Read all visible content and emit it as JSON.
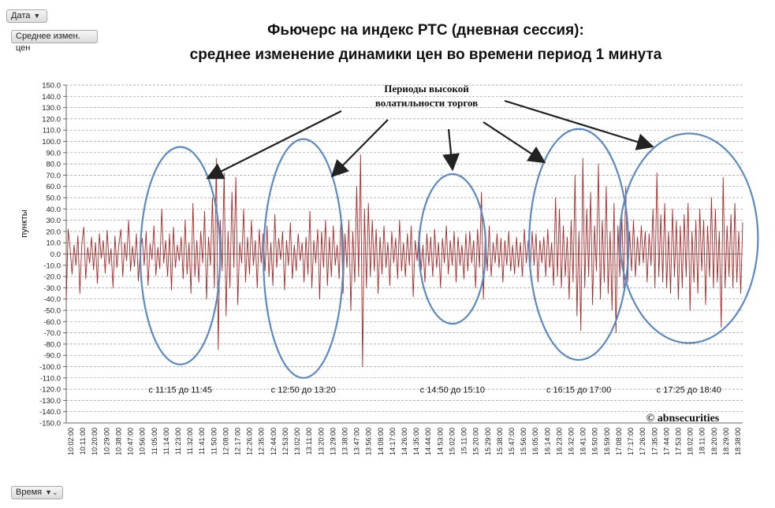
{
  "ui": {
    "field_date": "Дата",
    "field_value": "Среднее измен. цен",
    "field_time": "Время"
  },
  "chart_data": {
    "type": "line",
    "title_line1": "Фьючерс на индекс РТС (дневная сессия):",
    "title_line2": "среднее изменение динамики цен во времени период 1 минута",
    "ylabel": "пункты",
    "ylim": [
      -150,
      150
    ],
    "y_step": 10,
    "color": "#a52a2a",
    "ellipse_color": "#5b8ac0",
    "annotation": [
      "Периоды высокой",
      "волатильности торгов"
    ],
    "copyright": "© abnsecurities",
    "periods": [
      {
        "label": "с 11:15 до 11:45",
        "start": "11:15",
        "end": "11:45",
        "y_range": [
          -98,
          95
        ]
      },
      {
        "label": "с 12:50 до 13:20",
        "start": "12:50",
        "end": "13:20",
        "y_range": [
          -110,
          102
        ]
      },
      {
        "label": "с 14:50 до 15:10",
        "start": "14:50",
        "end": "15:10",
        "y_range": [
          -62,
          71
        ]
      },
      {
        "label": "с 16:15 до 17:00",
        "start": "16:15",
        "end": "17:00",
        "y_range": [
          -94,
          111
        ]
      },
      {
        "label": "с 17:25 до 18:40",
        "start": "17:25",
        "end": "18:40",
        "y_range": [
          -79,
          107
        ]
      }
    ],
    "time_start": "10:02",
    "time_end": "18:44",
    "x_tick_labels": [
      "10:02:00",
      "10:11:00",
      "10:20:00",
      "10:29:00",
      "10:38:00",
      "10:47:00",
      "10:56:00",
      "11:05:00",
      "11:14:00",
      "11:23:00",
      "11:32:00",
      "11:41:00",
      "11:50:00",
      "12:08:00",
      "12:17:00",
      "12:26:00",
      "12:35:00",
      "12:44:00",
      "12:53:00",
      "13:02:00",
      "13:11:00",
      "13:20:00",
      "13:29:00",
      "13:38:00",
      "13:47:00",
      "13:56:00",
      "14:08:00",
      "14:17:00",
      "14:26:00",
      "14:35:00",
      "14:44:00",
      "14:53:00",
      "15:02:00",
      "15:11:00",
      "15:20:00",
      "15:29:00",
      "15:38:00",
      "15:47:00",
      "15:56:00",
      "16:05:00",
      "16:14:00",
      "16:23:00",
      "16:32:00",
      "16:41:00",
      "16:50:00",
      "16:59:00",
      "17:08:00",
      "17:17:00",
      "17:26:00",
      "17:35:00",
      "17:44:00",
      "17:53:00",
      "18:02:00",
      "18:11:00",
      "18:20:00",
      "18:29:00",
      "18:38:00"
    ],
    "series_points": [
      [
        0,
        -42
      ],
      [
        1,
        22
      ],
      [
        2,
        5
      ],
      [
        3,
        -18
      ],
      [
        4,
        8
      ],
      [
        5,
        -10
      ],
      [
        6,
        16
      ],
      [
        7,
        -35
      ],
      [
        8,
        9
      ],
      [
        9,
        24
      ],
      [
        10,
        -22
      ],
      [
        11,
        6
      ],
      [
        12,
        -8
      ],
      [
        13,
        15
      ],
      [
        14,
        -14
      ],
      [
        15,
        10
      ],
      [
        16,
        -26
      ],
      [
        17,
        18
      ],
      [
        18,
        -4
      ],
      [
        19,
        12
      ],
      [
        20,
        -17
      ],
      [
        21,
        21
      ],
      [
        22,
        -9
      ],
      [
        23,
        5
      ],
      [
        24,
        -30
      ],
      [
        25,
        16
      ],
      [
        26,
        -12
      ],
      [
        27,
        8
      ],
      [
        28,
        22
      ],
      [
        29,
        -20
      ],
      [
        30,
        10
      ],
      [
        31,
        -6
      ],
      [
        32,
        30
      ],
      [
        33,
        -15
      ],
      [
        34,
        7
      ],
      [
        35,
        -11
      ],
      [
        36,
        18
      ],
      [
        37,
        -24
      ],
      [
        38,
        4
      ],
      [
        39,
        14
      ],
      [
        40,
        -10
      ],
      [
        41,
        20
      ],
      [
        42,
        -28
      ],
      [
        43,
        9
      ],
      [
        44,
        -5
      ],
      [
        45,
        25
      ],
      [
        46,
        -19
      ],
      [
        47,
        6
      ],
      [
        48,
        -13
      ],
      [
        49,
        40
      ],
      [
        50,
        -8
      ],
      [
        51,
        12
      ],
      [
        52,
        -20
      ],
      [
        53,
        18
      ],
      [
        54,
        -32
      ],
      [
        55,
        24
      ],
      [
        56,
        -12
      ],
      [
        57,
        8
      ],
      [
        58,
        -6
      ],
      [
        59,
        15
      ],
      [
        60,
        -22
      ],
      [
        61,
        30
      ],
      [
        62,
        -18
      ],
      [
        63,
        10
      ],
      [
        64,
        -35
      ],
      [
        65,
        45
      ],
      [
        66,
        -20
      ],
      [
        67,
        12
      ],
      [
        68,
        -25
      ],
      [
        69,
        20
      ],
      [
        70,
        -8
      ],
      [
        71,
        38
      ],
      [
        72,
        -40
      ],
      [
        73,
        15
      ],
      [
        74,
        -10
      ],
      [
        75,
        50
      ],
      [
        76,
        -30
      ],
      [
        77,
        85
      ],
      [
        78,
        -85
      ],
      [
        79,
        30
      ],
      [
        80,
        -15
      ],
      [
        81,
        72
      ],
      [
        82,
        -55
      ],
      [
        83,
        20
      ],
      [
        84,
        -30
      ],
      [
        85,
        55
      ],
      [
        86,
        -12
      ],
      [
        87,
        68
      ],
      [
        88,
        -45
      ],
      [
        89,
        10
      ],
      [
        90,
        -8
      ],
      [
        91,
        40
      ],
      [
        92,
        -25
      ],
      [
        93,
        15
      ],
      [
        94,
        -18
      ],
      [
        95,
        30
      ],
      [
        96,
        -10
      ],
      [
        97,
        12
      ],
      [
        98,
        -30
      ],
      [
        99,
        22
      ],
      [
        100,
        -8
      ],
      [
        101,
        18
      ],
      [
        102,
        -15
      ],
      [
        103,
        25
      ],
      [
        104,
        -20
      ],
      [
        105,
        10
      ],
      [
        106,
        -28
      ],
      [
        107,
        35
      ],
      [
        108,
        -12
      ],
      [
        109,
        14
      ],
      [
        110,
        -5
      ],
      [
        111,
        20
      ],
      [
        112,
        -32
      ],
      [
        113,
        12
      ],
      [
        114,
        -10
      ],
      [
        115,
        28
      ],
      [
        116,
        -22
      ],
      [
        117,
        8
      ],
      [
        118,
        -15
      ],
      [
        119,
        18
      ],
      [
        120,
        -6
      ],
      [
        121,
        10
      ],
      [
        122,
        -25
      ],
      [
        123,
        15
      ],
      [
        124,
        -18
      ],
      [
        125,
        38
      ],
      [
        126,
        -30
      ],
      [
        127,
        12
      ],
      [
        128,
        -8
      ],
      [
        129,
        22
      ],
      [
        130,
        -40
      ],
      [
        131,
        20
      ],
      [
        132,
        -12
      ],
      [
        133,
        30
      ],
      [
        134,
        -28
      ],
      [
        135,
        15
      ],
      [
        136,
        -20
      ],
      [
        137,
        25
      ],
      [
        138,
        -10
      ],
      [
        139,
        8
      ],
      [
        140,
        -22
      ],
      [
        141,
        35
      ],
      [
        142,
        -35
      ],
      [
        143,
        18
      ],
      [
        144,
        -12
      ],
      [
        145,
        30
      ],
      [
        146,
        -50
      ],
      [
        147,
        20
      ],
      [
        148,
        -25
      ],
      [
        149,
        60
      ],
      [
        150,
        -20
      ],
      [
        151,
        88
      ],
      [
        152,
        -100
      ],
      [
        153,
        40
      ],
      [
        154,
        -30
      ],
      [
        155,
        45
      ],
      [
        156,
        -20
      ],
      [
        157,
        30
      ],
      [
        158,
        -15
      ],
      [
        159,
        22
      ],
      [
        160,
        -35
      ],
      [
        161,
        15
      ],
      [
        162,
        -18
      ],
      [
        163,
        25
      ],
      [
        164,
        -12
      ],
      [
        165,
        10
      ],
      [
        166,
        -28
      ],
      [
        167,
        20
      ],
      [
        168,
        -8
      ],
      [
        169,
        14
      ],
      [
        170,
        -22
      ],
      [
        171,
        30
      ],
      [
        172,
        -15
      ],
      [
        173,
        10
      ],
      [
        174,
        -20
      ],
      [
        175,
        18
      ],
      [
        176,
        -10
      ],
      [
        177,
        25
      ],
      [
        178,
        -38
      ],
      [
        179,
        12
      ],
      [
        180,
        -6
      ],
      [
        181,
        20
      ],
      [
        182,
        -15
      ],
      [
        183,
        8
      ],
      [
        184,
        -25
      ],
      [
        185,
        18
      ],
      [
        186,
        -10
      ],
      [
        187,
        15
      ],
      [
        188,
        -20
      ],
      [
        189,
        22
      ],
      [
        190,
        -12
      ],
      [
        191,
        10
      ],
      [
        192,
        -30
      ],
      [
        193,
        14
      ],
      [
        194,
        -8
      ],
      [
        195,
        25
      ],
      [
        196,
        -18
      ],
      [
        197,
        12
      ],
      [
        198,
        -10
      ],
      [
        199,
        20
      ],
      [
        200,
        -25
      ],
      [
        201,
        15
      ],
      [
        202,
        -10
      ],
      [
        203,
        8
      ],
      [
        204,
        -22
      ],
      [
        205,
        18
      ],
      [
        206,
        -15
      ],
      [
        207,
        20
      ],
      [
        208,
        -8
      ],
      [
        209,
        12
      ],
      [
        210,
        -30
      ],
      [
        211,
        22
      ],
      [
        212,
        -12
      ],
      [
        213,
        55
      ],
      [
        214,
        -40
      ],
      [
        215,
        20
      ],
      [
        216,
        -15
      ],
      [
        217,
        25
      ],
      [
        218,
        -20
      ],
      [
        219,
        10
      ],
      [
        220,
        -8
      ],
      [
        221,
        18
      ],
      [
        222,
        -12
      ],
      [
        223,
        14
      ],
      [
        224,
        -25
      ],
      [
        225,
        12
      ],
      [
        226,
        -10
      ],
      [
        227,
        20
      ],
      [
        228,
        -15
      ],
      [
        229,
        8
      ],
      [
        230,
        -18
      ],
      [
        231,
        15
      ],
      [
        232,
        -12
      ],
      [
        233,
        10
      ],
      [
        234,
        -20
      ],
      [
        235,
        22
      ],
      [
        236,
        -8
      ],
      [
        237,
        12
      ],
      [
        238,
        -15
      ],
      [
        239,
        20
      ],
      [
        240,
        -10
      ],
      [
        241,
        18
      ],
      [
        242,
        -25
      ],
      [
        243,
        12
      ],
      [
        244,
        -8
      ],
      [
        245,
        15
      ],
      [
        246,
        -20
      ],
      [
        247,
        22
      ],
      [
        248,
        -12
      ],
      [
        249,
        10
      ],
      [
        250,
        -28
      ],
      [
        251,
        50
      ],
      [
        252,
        -20
      ],
      [
        253,
        40
      ],
      [
        254,
        -30
      ],
      [
        255,
        25
      ],
      [
        256,
        -20
      ],
      [
        257,
        15
      ],
      [
        258,
        -40
      ],
      [
        259,
        30
      ],
      [
        260,
        -25
      ],
      [
        261,
        70
      ],
      [
        262,
        -55
      ],
      [
        263,
        20
      ],
      [
        264,
        -68
      ],
      [
        265,
        85
      ],
      [
        266,
        -30
      ],
      [
        267,
        40
      ],
      [
        268,
        -20
      ],
      [
        269,
        55
      ],
      [
        270,
        -45
      ],
      [
        271,
        25
      ],
      [
        272,
        -15
      ],
      [
        273,
        80
      ],
      [
        274,
        -40
      ],
      [
        275,
        30
      ],
      [
        276,
        -25
      ],
      [
        277,
        60
      ],
      [
        278,
        -35
      ],
      [
        279,
        20
      ],
      [
        280,
        -50
      ],
      [
        281,
        45
      ],
      [
        282,
        -70
      ],
      [
        283,
        25
      ],
      [
        284,
        -20
      ],
      [
        285,
        35
      ],
      [
        286,
        -30
      ],
      [
        287,
        60
      ],
      [
        288,
        -25
      ],
      [
        289,
        20
      ],
      [
        290,
        -15
      ],
      [
        291,
        30
      ],
      [
        292,
        -20
      ],
      [
        293,
        15
      ],
      [
        294,
        -10
      ],
      [
        295,
        25
      ],
      [
        296,
        -8
      ],
      [
        297,
        20
      ],
      [
        298,
        -25
      ],
      [
        299,
        18
      ],
      [
        300,
        -10
      ],
      [
        301,
        40
      ],
      [
        302,
        -30
      ],
      [
        303,
        72
      ],
      [
        304,
        -20
      ],
      [
        305,
        35
      ],
      [
        306,
        -25
      ],
      [
        307,
        45
      ],
      [
        308,
        -30
      ],
      [
        309,
        20
      ],
      [
        310,
        -35
      ],
      [
        311,
        40
      ],
      [
        312,
        -20
      ],
      [
        313,
        30
      ],
      [
        314,
        -40
      ],
      [
        315,
        25
      ],
      [
        316,
        -30
      ],
      [
        317,
        35
      ],
      [
        318,
        -20
      ],
      [
        319,
        45
      ],
      [
        320,
        -50
      ],
      [
        321,
        20
      ],
      [
        322,
        -25
      ],
      [
        323,
        30
      ],
      [
        324,
        -35
      ],
      [
        325,
        40
      ],
      [
        326,
        -15
      ],
      [
        327,
        30
      ],
      [
        328,
        -45
      ],
      [
        329,
        25
      ],
      [
        330,
        -20
      ],
      [
        331,
        50
      ],
      [
        332,
        -30
      ],
      [
        333,
        40
      ],
      [
        334,
        -25
      ],
      [
        335,
        20
      ],
      [
        336,
        -65
      ],
      [
        337,
        68
      ],
      [
        338,
        -30
      ],
      [
        339,
        25
      ],
      [
        340,
        -20
      ],
      [
        341,
        35
      ],
      [
        342,
        -30
      ],
      [
        343,
        45
      ],
      [
        344,
        -25
      ],
      [
        345,
        20
      ],
      [
        346,
        -35
      ],
      [
        347,
        28
      ]
    ]
  }
}
